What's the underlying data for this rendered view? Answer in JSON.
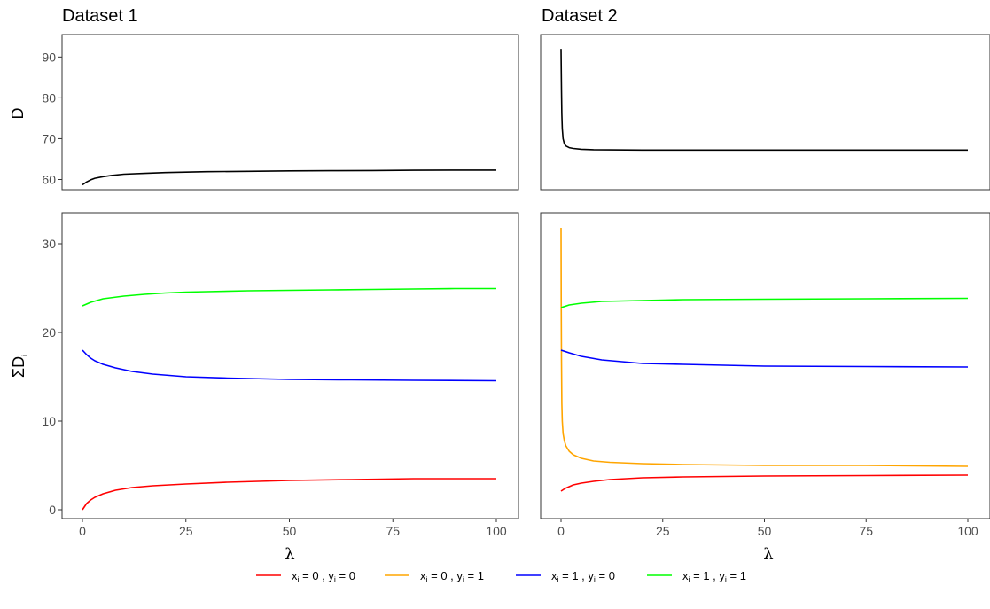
{
  "chart_data": {
    "type": "line",
    "facets": [
      "Dataset 1",
      "Dataset 2"
    ],
    "xlabel": "λ",
    "x_ticks": [
      0,
      25,
      50,
      75,
      100
    ],
    "xlim": [
      0,
      100
    ],
    "rows": [
      {
        "ylabel": "D",
        "ylim": [
          57.5,
          95.5
        ],
        "y_ticks": [
          60,
          70,
          80,
          90
        ]
      },
      {
        "ylabel": "ΣD",
        "ylabel_sub": "i",
        "ylim": [
          -1,
          33.5
        ],
        "y_ticks": [
          0,
          10,
          20,
          30
        ]
      }
    ],
    "panels": [
      {
        "facet": "Dataset 1",
        "row": 0,
        "series": [
          {
            "key": "D",
            "color": "#000000",
            "x": [
              0,
              1,
              2,
              3,
              5,
              7,
              10,
              15,
              20,
              25,
              30,
              40,
              50,
              60,
              70,
              80,
              90,
              100
            ],
            "y": [
              58.7,
              59.4,
              59.9,
              60.3,
              60.7,
              61.0,
              61.3,
              61.5,
              61.7,
              61.8,
              61.9,
              62.0,
              62.1,
              62.15,
              62.2,
              62.25,
              62.3,
              62.3
            ]
          }
        ]
      },
      {
        "facet": "Dataset 2",
        "row": 0,
        "series": [
          {
            "key": "D",
            "color": "#000000",
            "x": [
              0,
              0.1,
              0.2,
              0.3,
              0.5,
              0.8,
              1.2,
              2,
              3,
              5,
              8,
              12,
              20,
              30,
              50,
              75,
              100
            ],
            "y": [
              92.0,
              82.0,
              76.0,
              72.5,
              70.0,
              68.8,
              68.2,
              67.8,
              67.6,
              67.4,
              67.3,
              67.25,
              67.2,
              67.2,
              67.2,
              67.2,
              67.2
            ]
          }
        ]
      },
      {
        "facet": "Dataset 1",
        "row": 1,
        "series": [
          {
            "key": "s4",
            "color": "#00ff00",
            "x": [
              0,
              2,
              5,
              10,
              15,
              20,
              25,
              30,
              40,
              50,
              60,
              70,
              80,
              90,
              100
            ],
            "y": [
              23.0,
              23.4,
              23.8,
              24.1,
              24.3,
              24.45,
              24.55,
              24.6,
              24.7,
              24.75,
              24.8,
              24.85,
              24.9,
              24.95,
              24.95
            ]
          },
          {
            "key": "s3",
            "color": "#0000ff",
            "x": [
              0,
              1,
              2,
              3,
              5,
              8,
              12,
              17,
              25,
              35,
              50,
              65,
              80,
              100
            ],
            "y": [
              18.0,
              17.5,
              17.1,
              16.8,
              16.4,
              16.0,
              15.6,
              15.3,
              15.0,
              14.85,
              14.7,
              14.65,
              14.6,
              14.55
            ]
          },
          {
            "key": "s1",
            "color": "#ff0000",
            "x": [
              0,
              1,
              2,
              3,
              5,
              8,
              12,
              17,
              25,
              35,
              50,
              65,
              80,
              100
            ],
            "y": [
              0.0,
              0.7,
              1.1,
              1.4,
              1.8,
              2.2,
              2.5,
              2.7,
              2.9,
              3.1,
              3.3,
              3.4,
              3.5,
              3.5
            ]
          }
        ]
      },
      {
        "facet": "Dataset 2",
        "row": 1,
        "series": [
          {
            "key": "s2",
            "color": "#ffa500",
            "x": [
              0,
              0.05,
              0.1,
              0.2,
              0.3,
              0.5,
              0.8,
              1.2,
              2,
              3,
              5,
              8,
              12,
              20,
              30,
              50,
              75,
              100
            ],
            "y": [
              31.8,
              24.0,
              17.0,
              12.0,
              10.0,
              8.6,
              7.8,
              7.2,
              6.6,
              6.2,
              5.8,
              5.5,
              5.35,
              5.2,
              5.1,
              5.0,
              5.0,
              4.9
            ]
          },
          {
            "key": "s4",
            "color": "#00ff00",
            "x": [
              0,
              2,
              5,
              10,
              20,
              30,
              50,
              75,
              100
            ],
            "y": [
              22.8,
              23.1,
              23.3,
              23.5,
              23.6,
              23.7,
              23.75,
              23.8,
              23.85
            ]
          },
          {
            "key": "s3",
            "color": "#0000ff",
            "x": [
              0,
              2,
              5,
              10,
              15,
              20,
              30,
              40,
              50,
              75,
              100
            ],
            "y": [
              18.0,
              17.7,
              17.3,
              16.9,
              16.7,
              16.5,
              16.4,
              16.3,
              16.2,
              16.15,
              16.1
            ]
          },
          {
            "key": "s1",
            "color": "#ff0000",
            "x": [
              0,
              1,
              2,
              3,
              5,
              8,
              12,
              20,
              30,
              50,
              75,
              100
            ],
            "y": [
              2.1,
              2.4,
              2.6,
              2.8,
              3.0,
              3.2,
              3.4,
              3.6,
              3.7,
              3.8,
              3.85,
              3.9
            ]
          }
        ]
      }
    ],
    "legend": {
      "position": "bottom",
      "entries": [
        {
          "key": "s1",
          "color": "#ff0000",
          "x_val": "0",
          "y_val": "0"
        },
        {
          "key": "s2",
          "color": "#ffa500",
          "x_val": "0",
          "y_val": "1"
        },
        {
          "key": "s3",
          "color": "#0000ff",
          "x_val": "1",
          "y_val": "0"
        },
        {
          "key": "s4",
          "color": "#00ff00",
          "x_val": "1",
          "y_val": "1"
        }
      ]
    },
    "grid": false
  }
}
